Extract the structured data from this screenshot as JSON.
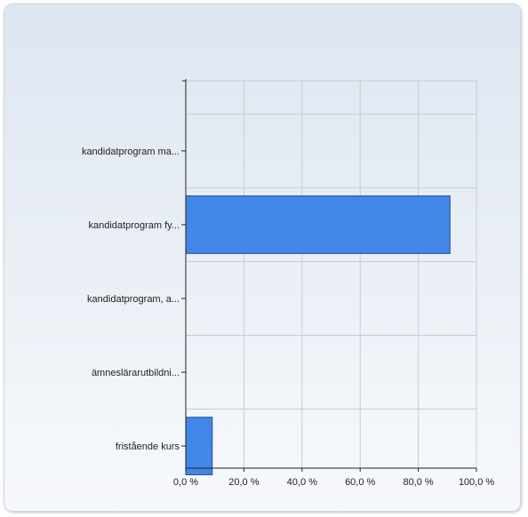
{
  "chart_data": {
    "type": "bar",
    "orientation": "horizontal",
    "categories": [
      "kandidatprogram ma...",
      "kandidatprogram fy...",
      "kandidatprogram, a...",
      "ämneslärarutbildni...",
      "fristående kurs"
    ],
    "values": [
      0,
      90.9,
      0,
      0,
      9.1
    ],
    "xlim": [
      0,
      100
    ],
    "x_ticks": [
      0,
      20,
      40,
      60,
      80,
      100
    ],
    "x_tick_labels": [
      "0,0 %",
      "20,0 %",
      "40,0 %",
      "60,0 %",
      "80,0 %",
      "100,0 %"
    ],
    "title": "",
    "xlabel": "",
    "ylabel": "",
    "grid": true,
    "bar_color": "#4287e8",
    "bar_border_color": "#1f4f99"
  }
}
